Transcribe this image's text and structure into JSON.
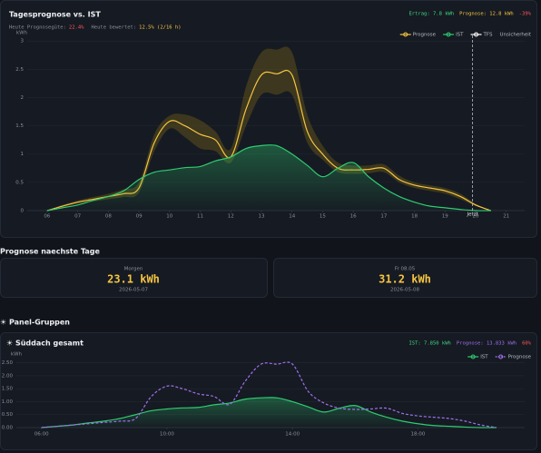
{
  "header": {
    "forecast_days_title": "Prognose naechste Tage",
    "groups_title": "☀ Panel-Gruppen"
  },
  "forecast_days": [
    {
      "label": "Morgen",
      "value": "23.1 kWh",
      "date": "2026-05-07"
    },
    {
      "label": "Fr 08.05",
      "value": "31.2 kWh",
      "date": "2026-05-08"
    }
  ],
  "chart_data": [
    {
      "type": "line",
      "title": "Tagesprognose vs. IST",
      "stats": [
        {
          "text": "Ertrag: 7.8 kWh",
          "color": "#3ddc84"
        },
        {
          "text": "Prognose: 12.8 kWh",
          "color": "#f5c542"
        },
        {
          "text": "-39%",
          "color": "#ff5a5a"
        }
      ],
      "info": [
        {
          "label": "Heute Prognosegüte:",
          "value": "22.4%",
          "color": "#ff5a5a"
        },
        {
          "label": "Heute bewertet:",
          "value": "12.5% (2/16 h)",
          "color": "#f5c542"
        }
      ],
      "y_label": "kWh",
      "x": [
        6,
        6.5,
        7,
        7.5,
        8,
        8.5,
        9,
        9.5,
        10,
        10.5,
        11,
        11.5,
        12,
        12.5,
        13,
        13.5,
        14,
        14.5,
        15,
        15.5,
        16,
        16.5,
        17,
        17.5,
        18,
        18.5,
        19,
        19.5,
        20,
        20.5
      ],
      "band": {
        "name": "Unsicherheit",
        "color": "#6b5a1a",
        "upper": [
          0,
          0.1,
          0.18,
          0.24,
          0.3,
          0.38,
          0.5,
          1.35,
          1.68,
          1.7,
          1.6,
          1.4,
          1.1,
          2.2,
          2.8,
          2.85,
          2.8,
          1.7,
          1.15,
          0.85,
          0.8,
          0.8,
          0.82,
          0.62,
          0.5,
          0.45,
          0.4,
          0.3,
          0.12,
          0
        ],
        "lower": [
          0,
          0.06,
          0.12,
          0.16,
          0.2,
          0.24,
          0.32,
          1.05,
          1.45,
          1.3,
          1.1,
          1.05,
          0.85,
          1.5,
          2.05,
          2.05,
          2.05,
          1.2,
          0.9,
          0.68,
          0.65,
          0.66,
          0.68,
          0.5,
          0.4,
          0.35,
          0.3,
          0.2,
          0.08,
          0
        ]
      },
      "series": [
        {
          "name": "Prognose",
          "color": "#f5c542",
          "dash": false,
          "area": false,
          "values": [
            0,
            0.08,
            0.15,
            0.2,
            0.25,
            0.3,
            0.4,
            1.2,
            1.58,
            1.5,
            1.35,
            1.25,
            0.95,
            1.8,
            2.4,
            2.42,
            2.4,
            1.4,
            1.0,
            0.75,
            0.72,
            0.73,
            0.75,
            0.55,
            0.45,
            0.4,
            0.35,
            0.25,
            0.1,
            0
          ]
        },
        {
          "name": "IST",
          "color": "#2ecc71",
          "dash": false,
          "area": true,
          "values": [
            0,
            0.05,
            0.1,
            0.18,
            0.25,
            0.35,
            0.55,
            0.68,
            0.72,
            0.76,
            0.78,
            0.88,
            0.95,
            1.1,
            1.15,
            1.15,
            1.0,
            0.8,
            0.6,
            0.75,
            0.85,
            0.6,
            0.4,
            0.25,
            0.15,
            0.08,
            0.05,
            0.02,
            0,
            0
          ]
        }
      ],
      "legend_extra": [
        {
          "name": "TFS",
          "color": "#ffffff"
        }
      ],
      "now": {
        "x": 19.9,
        "label": "Jetzt"
      },
      "xlim": [
        5.35,
        21.6
      ],
      "ylim": [
        0,
        3.1
      ],
      "xticks": [
        {
          "value": 6,
          "label": "06"
        },
        {
          "value": 7,
          "label": "07"
        },
        {
          "value": 8,
          "label": "08"
        },
        {
          "value": 9,
          "label": "09"
        },
        10,
        11,
        12,
        13,
        14,
        15,
        16,
        17,
        18,
        19,
        20,
        21
      ],
      "yticks": [
        0,
        0.5,
        1,
        1.5,
        2,
        2.5,
        3
      ],
      "grid": true
    },
    {
      "type": "line",
      "title": "☀ Süddach gesamt",
      "stats": [
        {
          "text": "IST: 7.850 kWh",
          "color": "#3ddc84"
        },
        {
          "text": "Prognose: 13.833 kWh",
          "color": "#a070f0"
        },
        {
          "text": "60%",
          "color": "#ff5a5a"
        }
      ],
      "y_label": "kWh",
      "x": [
        6,
        6.5,
        7,
        7.5,
        8,
        8.5,
        9,
        9.5,
        10,
        10.5,
        11,
        11.5,
        12,
        12.5,
        13,
        13.5,
        14,
        14.5,
        15,
        15.5,
        16,
        16.5,
        17,
        17.5,
        18,
        18.5,
        19,
        19.5,
        20,
        20.5
      ],
      "series": [
        {
          "name": "IST",
          "color": "#2ecc71",
          "dash": false,
          "area": true,
          "values": [
            0,
            0.05,
            0.1,
            0.18,
            0.25,
            0.35,
            0.5,
            0.65,
            0.72,
            0.76,
            0.78,
            0.88,
            0.95,
            1.1,
            1.15,
            1.15,
            1.0,
            0.8,
            0.6,
            0.75,
            0.85,
            0.6,
            0.4,
            0.25,
            0.15,
            0.08,
            0.05,
            0.02,
            0,
            0
          ]
        },
        {
          "name": "Prognose",
          "color": "#a070f0",
          "dash": true,
          "area": false,
          "values": [
            0,
            0.05,
            0.1,
            0.15,
            0.2,
            0.25,
            0.35,
            1.2,
            1.6,
            1.5,
            1.3,
            1.2,
            0.9,
            1.8,
            2.45,
            2.45,
            2.45,
            1.4,
            0.95,
            0.75,
            0.7,
            0.72,
            0.75,
            0.55,
            0.45,
            0.4,
            0.35,
            0.25,
            0.1,
            0
          ]
        }
      ],
      "xlim": [
        5.2,
        21.4
      ],
      "ylim": [
        0,
        2.7
      ],
      "xticks": [
        {
          "value": 6,
          "label": "06:00"
        },
        {
          "value": 10,
          "label": "10:00"
        },
        {
          "value": 14,
          "label": "14:00"
        },
        {
          "value": 18,
          "label": "18:00"
        }
      ],
      "yticks": [
        {
          "value": 0,
          "label": "0.00"
        },
        {
          "value": 0.5,
          "label": "0.50"
        },
        {
          "value": 1,
          "label": "1.00"
        },
        {
          "value": 1.5,
          "label": "1.50"
        },
        {
          "value": 2,
          "label": "2.00"
        },
        {
          "value": 2.5,
          "label": "2.50"
        }
      ],
      "grid": true
    }
  ]
}
